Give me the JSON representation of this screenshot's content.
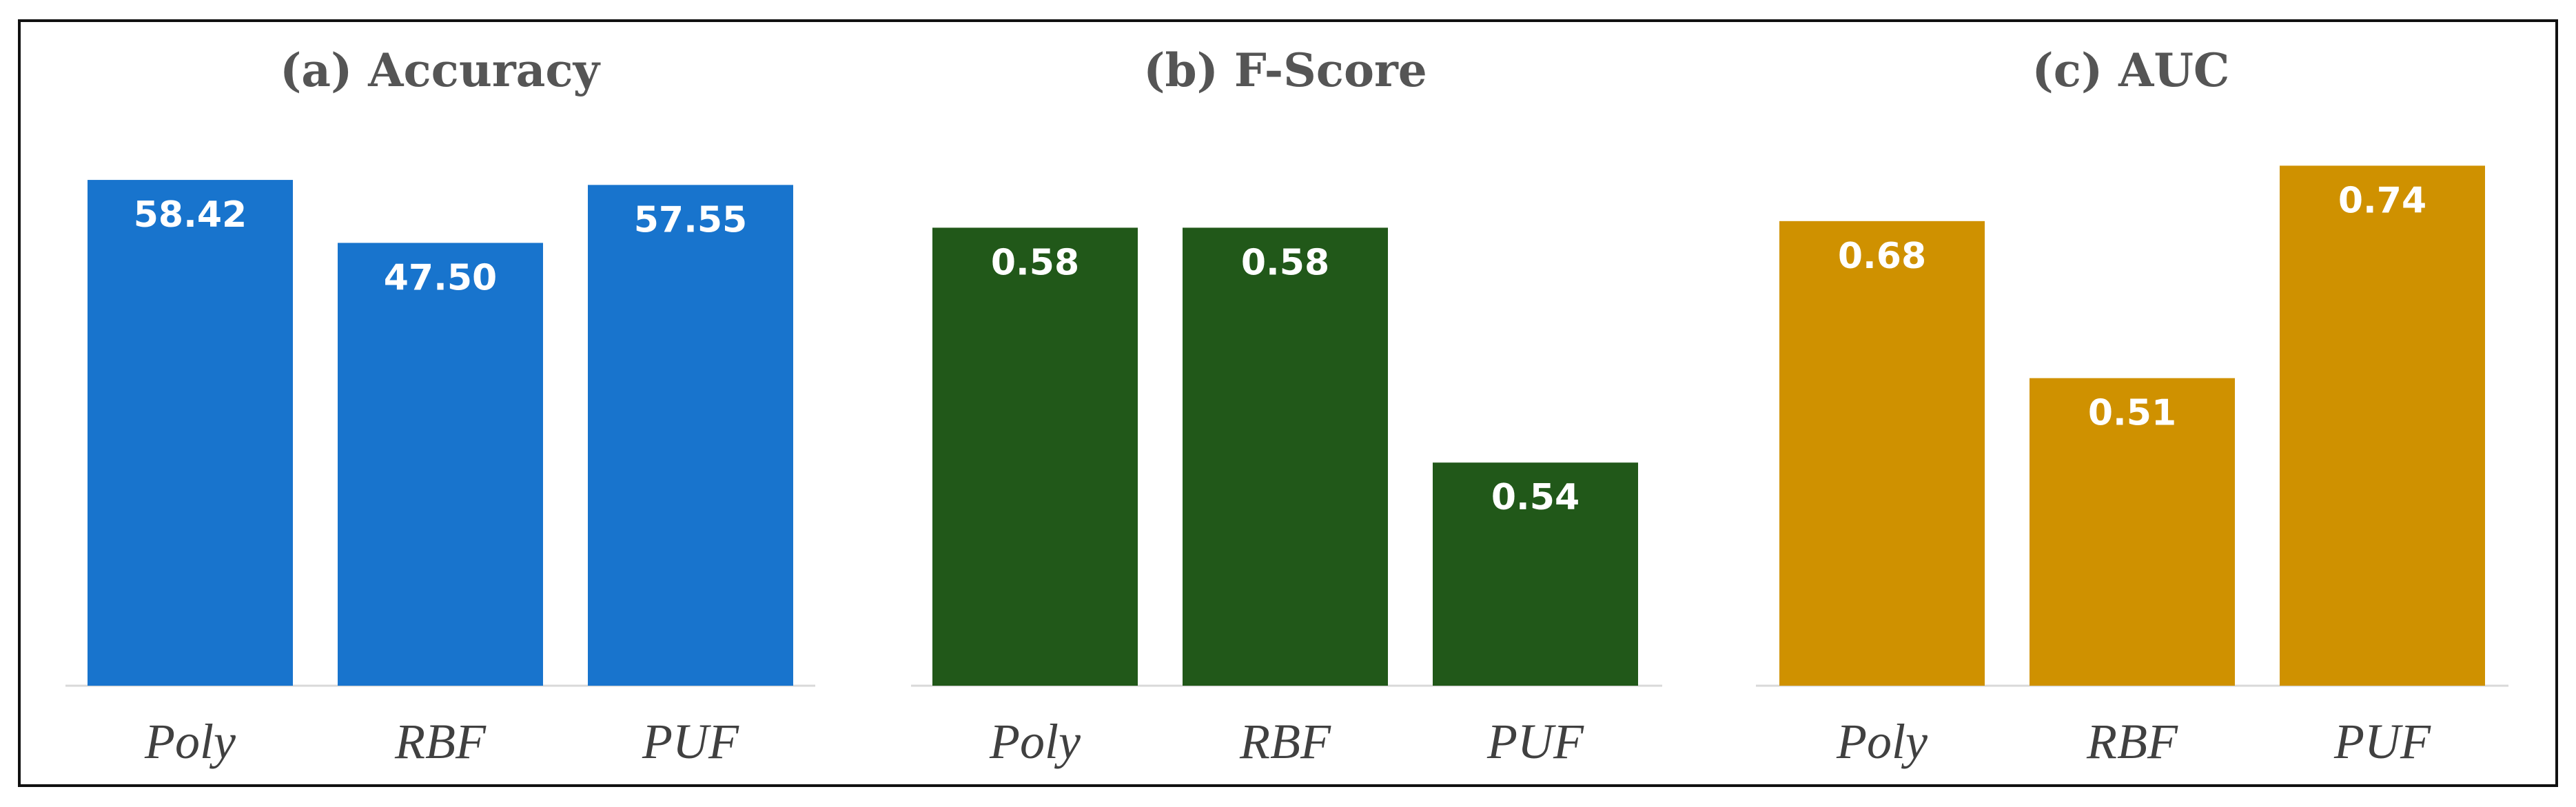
{
  "chart_data": [
    {
      "type": "bar",
      "title": "(a) Accuracy",
      "categories": [
        "Poly",
        "RBF",
        "PUF"
      ],
      "values": [
        58.42,
        47.5,
        57.55
      ],
      "value_labels": [
        "58.42",
        "47.50",
        "57.55"
      ],
      "color": "#1874cd",
      "ylim": [
        -29.3,
        70.5
      ],
      "grid": false,
      "legend": "none"
    },
    {
      "type": "bar",
      "title": "(b) F-Score",
      "categories": [
        "Poly",
        "RBF",
        "PUF"
      ],
      "values": [
        0.58,
        0.58,
        0.54
      ],
      "value_labels": [
        "0.58",
        "0.58",
        "0.54"
      ],
      "color": "#215819",
      "ylim": [
        0.502,
        0.6
      ],
      "grid": false,
      "legend": "none"
    },
    {
      "type": "bar",
      "title": "(c) AUC",
      "categories": [
        "Poly",
        "RBF",
        "PUF"
      ],
      "values": [
        0.68,
        0.51,
        0.74
      ],
      "value_labels": [
        "0.68",
        "0.51",
        "0.74"
      ],
      "color": "#cf9100",
      "ylim": [
        0.177,
        0.8
      ],
      "grid": false,
      "legend": "none"
    }
  ]
}
